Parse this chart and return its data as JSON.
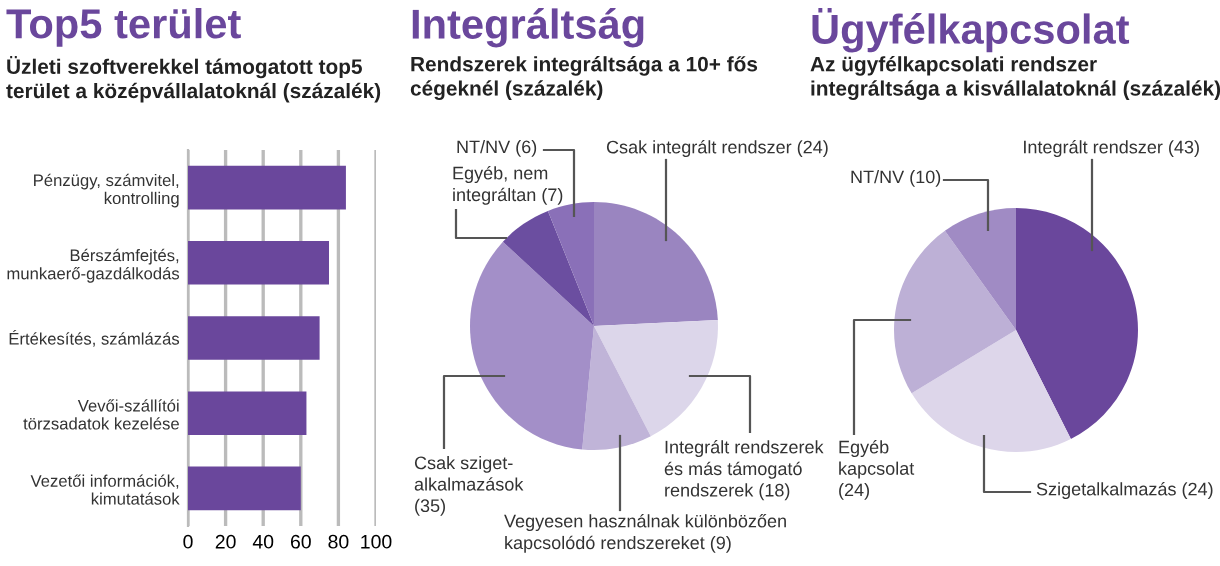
{
  "chart_data": [
    {
      "type": "bar",
      "orientation": "horizontal",
      "title": "Top5 terület",
      "subtitle": "Üzleti szoftverekkel támogatott top5\nterület a középvállalatoknál (százalék)",
      "categories": [
        "Pénzügy, számvitel,\nkontrolling",
        "Bérszámfejtés,\nmunkaerő-gazdálkodás",
        "Értékesítés, számlázás",
        "Vevői-szállítói\ntörzsadatok kezelése",
        "Vezetői információk,\nkimutatások"
      ],
      "values": [
        84,
        75,
        70,
        63,
        60
      ],
      "color": "#6a479c",
      "xlim": [
        0,
        100
      ],
      "xticks": [
        0,
        20,
        40,
        60,
        80,
        100
      ],
      "grid": "x"
    },
    {
      "type": "pie",
      "title": "Integráltság",
      "subtitle": "Rendszerek integráltsága a 10+ fős\ncégeknél (százalék)",
      "categories": [
        "Csak integrált rendszer (24)",
        "Integrált rendszerek\nés más támogató\nrendszerek (18)",
        "Vegyesen használnak különbözően\nkapcsolódó rendszereket (9)",
        "Csak sziget-\nalkalmazások\n(35)",
        "Egyéb, nem\nintegráltan (7)",
        "NT/NV (6)"
      ],
      "values": [
        24,
        18,
        9,
        35,
        7,
        6
      ],
      "colors": [
        "#9a85c0",
        "#dcd6ea",
        "#c0b4d8",
        "#a38fc8",
        "#6b4ea0",
        "#8a70b8"
      ]
    },
    {
      "type": "pie",
      "title": "Ügyfélkapcsolat",
      "subtitle": "Az ügyfélkapcsolati rendszer\nintegráltsága a kisvállalatoknál (százalék)",
      "categories": [
        "Integrált rendszer (43)",
        "Szigetalkalmazás (24)",
        "Egyéb\nkapcsolat\n(24)",
        "NT/NV (10)"
      ],
      "values": [
        43,
        24,
        24,
        10
      ],
      "colors": [
        "#6a479c",
        "#ddd6ea",
        "#bdb0d6",
        "#a08bc4"
      ]
    }
  ]
}
